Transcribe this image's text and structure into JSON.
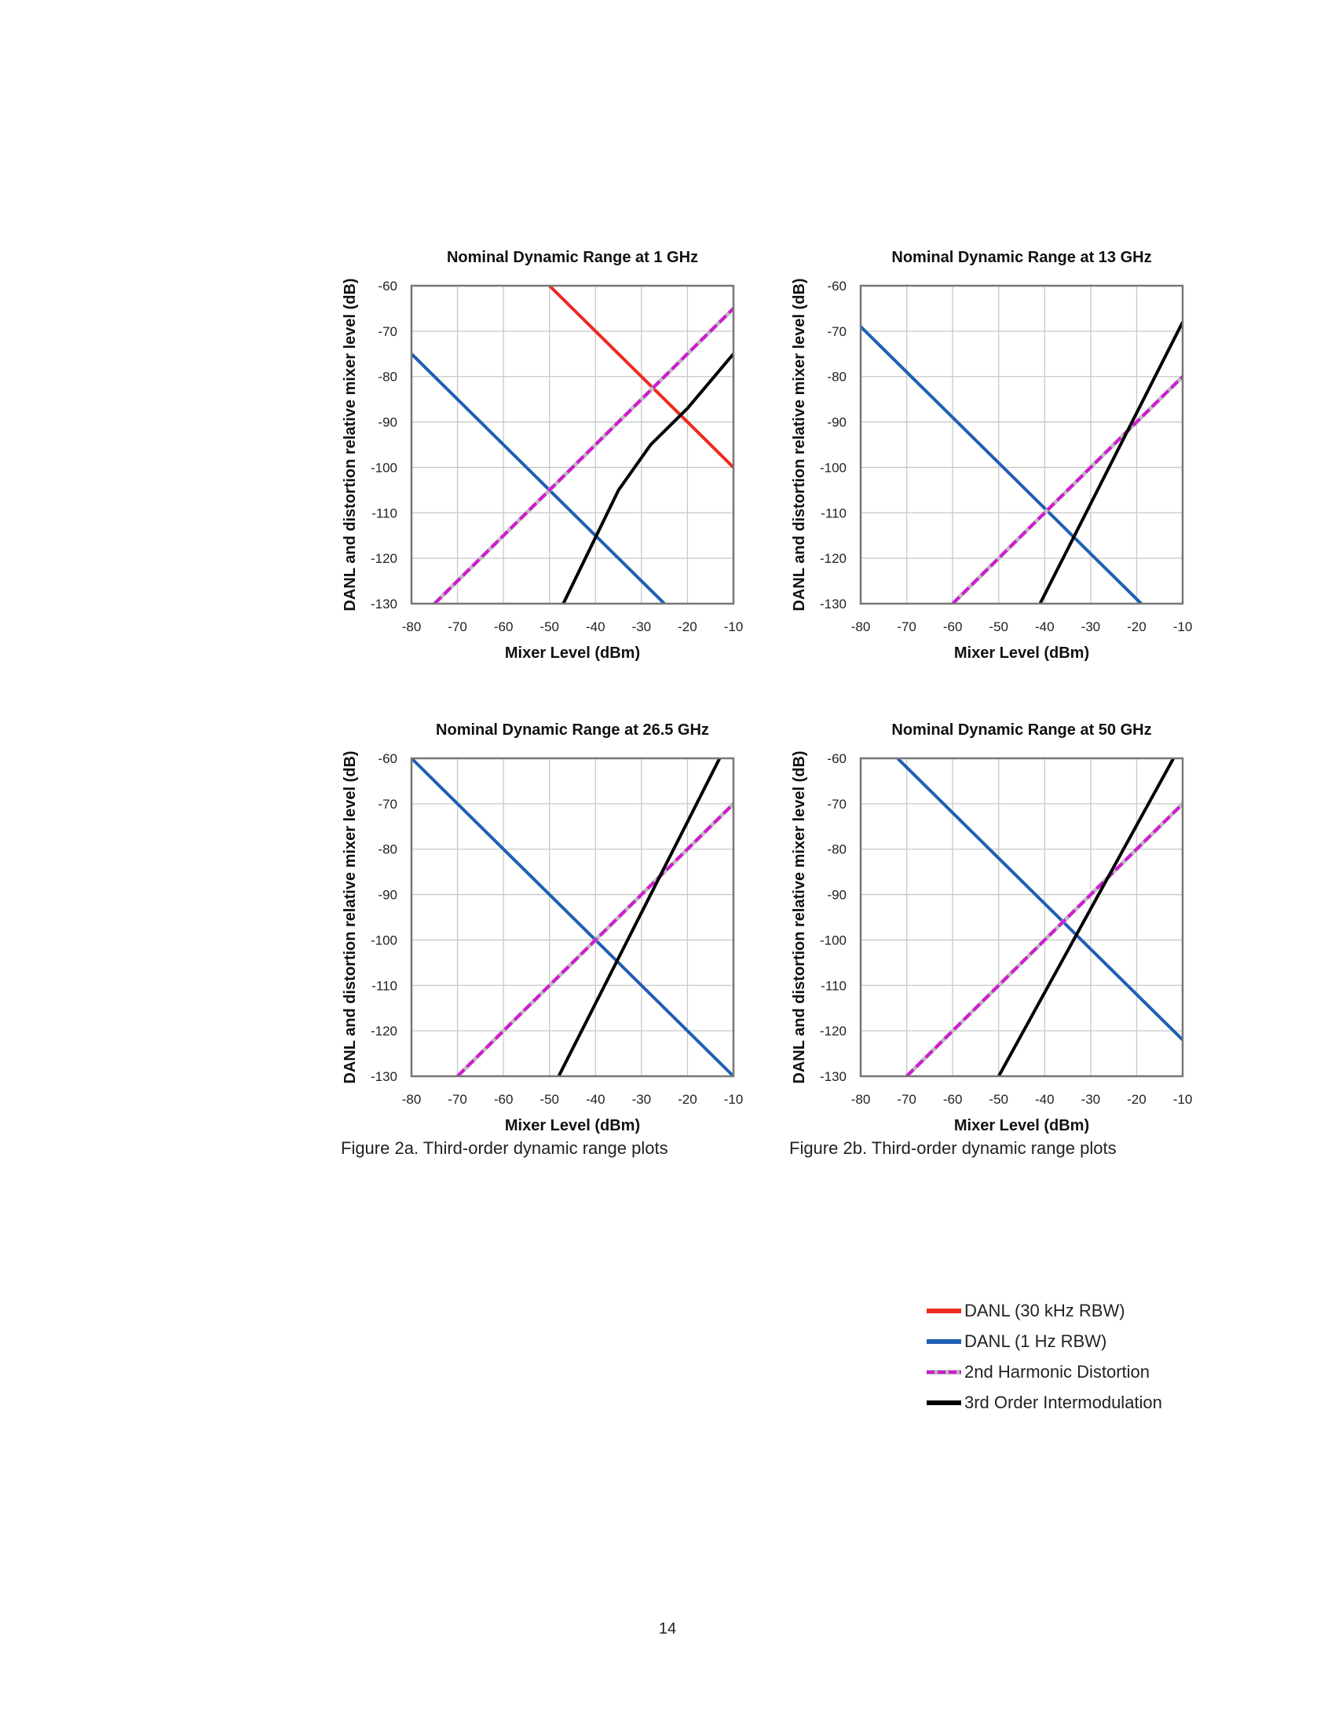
{
  "page_number": "14",
  "captions": {
    "left": "Figure 2a. Third-order dynamic range plots",
    "right": "Figure 2b. Third-order dynamic range plots"
  },
  "legend": {
    "items": [
      {
        "label": "DANL (30 kHz RBW)",
        "color": "#ee2a1e",
        "style": "solid"
      },
      {
        "label": "DANL (1 Hz RBW)",
        "color": "#1f5fb4",
        "style": "solid"
      },
      {
        "label": "2nd Harmonic Distortion",
        "color": "#d319d3",
        "style": "dashed"
      },
      {
        "label": "3rd Order Intermodulation",
        "color": "#000000",
        "style": "solid"
      }
    ]
  },
  "chart_data": [
    {
      "type": "line",
      "title": "Nominal Dynamic Range at 1 GHz",
      "xlabel": "Mixer Level (dBm)",
      "ylabel": "DANL and distortion relative mixer level (dB)",
      "xlim": [
        -80,
        -10
      ],
      "ylim": [
        -130,
        -60
      ],
      "xticks": [
        -80,
        -70,
        -60,
        -50,
        -40,
        -30,
        -20,
        -10
      ],
      "yticks": [
        -60,
        -70,
        -80,
        -90,
        -100,
        -110,
        -120,
        -130
      ],
      "grid": true,
      "series": [
        {
          "color": "#ee2a1e",
          "style": "solid",
          "x": [
            -50,
            -10
          ],
          "y": [
            -60,
            -100
          ]
        },
        {
          "color": "#1f5fb4",
          "style": "solid",
          "x": [
            -80,
            -25
          ],
          "y": [
            -75,
            -130
          ]
        },
        {
          "color": "#d319d3",
          "style": "dashed",
          "x": [
            -75,
            -10
          ],
          "y": [
            -130,
            -65
          ]
        },
        {
          "color": "#000000",
          "style": "solid",
          "x": [
            -47,
            -35,
            -28,
            -20,
            -10
          ],
          "y": [
            -130,
            -105,
            -95,
            -87,
            -75
          ]
        }
      ]
    },
    {
      "type": "line",
      "title": "Nominal Dynamic Range at 13 GHz",
      "xlabel": "Mixer Level (dBm)",
      "ylabel": "DANL and distortion relative mixer level (dB)",
      "xlim": [
        -80,
        -10
      ],
      "ylim": [
        -130,
        -60
      ],
      "xticks": [
        -80,
        -70,
        -60,
        -50,
        -40,
        -30,
        -20,
        -10
      ],
      "yticks": [
        -60,
        -70,
        -80,
        -90,
        -100,
        -110,
        -120,
        -130
      ],
      "grid": true,
      "series": [
        {
          "color": "#1f5fb4",
          "style": "solid",
          "x": [
            -80,
            -19
          ],
          "y": [
            -69,
            -130
          ]
        },
        {
          "color": "#d319d3",
          "style": "dashed",
          "x": [
            -60,
            -10
          ],
          "y": [
            -130,
            -80
          ]
        },
        {
          "color": "#000000",
          "style": "solid",
          "x": [
            -41,
            -10
          ],
          "y": [
            -130,
            -68
          ]
        }
      ]
    },
    {
      "type": "line",
      "title": "Nominal Dynamic Range at 26.5 GHz",
      "xlabel": "Mixer Level (dBm)",
      "ylabel": "DANL and distortion relative mixer level (dB)",
      "xlim": [
        -80,
        -10
      ],
      "ylim": [
        -130,
        -60
      ],
      "xticks": [
        -80,
        -70,
        -60,
        -50,
        -40,
        -30,
        -20,
        -10
      ],
      "yticks": [
        -60,
        -70,
        -80,
        -90,
        -100,
        -110,
        -120,
        -130
      ],
      "grid": true,
      "series": [
        {
          "color": "#1f5fb4",
          "style": "solid",
          "x": [
            -80,
            -10
          ],
          "y": [
            -60,
            -130
          ]
        },
        {
          "color": "#d319d3",
          "style": "dashed",
          "x": [
            -70,
            -10
          ],
          "y": [
            -130,
            -70
          ]
        },
        {
          "color": "#000000",
          "style": "solid",
          "x": [
            -48,
            -13
          ],
          "y": [
            -130,
            -60
          ]
        }
      ]
    },
    {
      "type": "line",
      "title": "Nominal Dynamic Range at 50 GHz",
      "xlabel": "Mixer Level (dBm)",
      "ylabel": "DANL and distortion relative mixer level (dB)",
      "xlim": [
        -80,
        -10
      ],
      "ylim": [
        -130,
        -60
      ],
      "xticks": [
        -80,
        -70,
        -60,
        -50,
        -40,
        -30,
        -20,
        -10
      ],
      "yticks": [
        -60,
        -70,
        -80,
        -90,
        -100,
        -110,
        -120,
        -130
      ],
      "grid": true,
      "series": [
        {
          "color": "#1f5fb4",
          "style": "solid",
          "x": [
            -72,
            -10
          ],
          "y": [
            -60,
            -122
          ]
        },
        {
          "color": "#d319d3",
          "style": "dashed",
          "x": [
            -70,
            -10
          ],
          "y": [
            -130,
            -70
          ]
        },
        {
          "color": "#000000",
          "style": "solid",
          "x": [
            -50,
            -12
          ],
          "y": [
            -130,
            -60
          ]
        }
      ]
    }
  ]
}
